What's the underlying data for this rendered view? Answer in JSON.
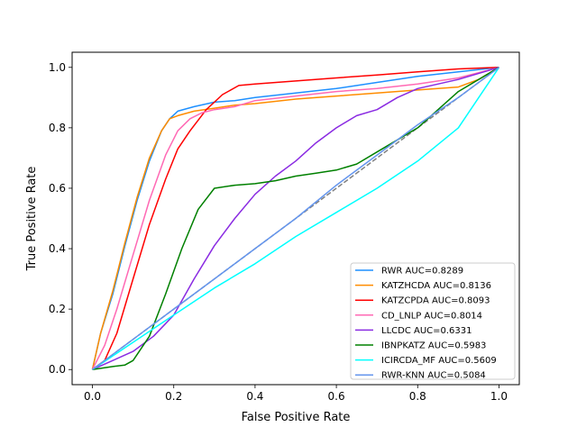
{
  "chart_data": {
    "type": "line",
    "xlabel": "False Positive Rate",
    "ylabel": "True Positive Rate",
    "xlim": [
      -0.05,
      1.05
    ],
    "ylim": [
      -0.05,
      1.05
    ],
    "xticks": [
      0.0,
      0.2,
      0.4,
      0.6,
      0.8,
      1.0
    ],
    "yticks": [
      0.0,
      0.2,
      0.4,
      0.6,
      0.8,
      1.0
    ],
    "xtick_labels": [
      "0.0",
      "0.2",
      "0.4",
      "0.6",
      "0.8",
      "1.0"
    ],
    "ytick_labels": [
      "0.0",
      "0.2",
      "0.4",
      "0.6",
      "0.8",
      "1.0"
    ],
    "grid": false,
    "legend_position": "lower-right",
    "diagonal": {
      "x": [
        0,
        1
      ],
      "y": [
        0,
        1
      ],
      "color": "#808080",
      "style": "dashed"
    },
    "series": [
      {
        "name": "RWR AUC=0.8289",
        "color": "#1e90ff",
        "x": [
          0,
          0.02,
          0.05,
          0.08,
          0.11,
          0.14,
          0.17,
          0.19,
          0.21,
          0.25,
          0.3,
          0.35,
          0.4,
          0.5,
          0.6,
          0.7,
          0.8,
          0.9,
          1.0
        ],
        "y": [
          0,
          0.12,
          0.25,
          0.41,
          0.56,
          0.69,
          0.79,
          0.83,
          0.855,
          0.87,
          0.885,
          0.89,
          0.9,
          0.915,
          0.93,
          0.95,
          0.97,
          0.985,
          1.0
        ]
      },
      {
        "name": "KATZHCDA AUC=0.8136",
        "color": "#ff8c00",
        "x": [
          0,
          0.02,
          0.05,
          0.08,
          0.11,
          0.14,
          0.17,
          0.19,
          0.21,
          0.25,
          0.3,
          0.35,
          0.4,
          0.5,
          0.6,
          0.7,
          0.8,
          0.9,
          0.95,
          1.0
        ],
        "y": [
          0,
          0.12,
          0.26,
          0.42,
          0.57,
          0.7,
          0.79,
          0.83,
          0.84,
          0.855,
          0.865,
          0.875,
          0.88,
          0.895,
          0.905,
          0.915,
          0.925,
          0.935,
          0.96,
          1.0
        ]
      },
      {
        "name": "KATZCPDA AUC=0.8093",
        "color": "#ff0000",
        "x": [
          0,
          0.03,
          0.06,
          0.1,
          0.14,
          0.18,
          0.21,
          0.24,
          0.28,
          0.32,
          0.36,
          0.4,
          0.5,
          0.6,
          0.7,
          0.8,
          0.85,
          0.9,
          1.0
        ],
        "y": [
          0,
          0.03,
          0.12,
          0.3,
          0.48,
          0.63,
          0.73,
          0.79,
          0.86,
          0.91,
          0.94,
          0.945,
          0.955,
          0.965,
          0.975,
          0.985,
          0.99,
          0.995,
          1.0
        ]
      },
      {
        "name": "CD_LNLP AUC=0.8014",
        "color": "#ff69b4",
        "x": [
          0,
          0.03,
          0.06,
          0.1,
          0.14,
          0.18,
          0.21,
          0.24,
          0.27,
          0.3,
          0.35,
          0.4,
          0.5,
          0.6,
          0.7,
          0.8,
          0.9,
          1.0
        ],
        "y": [
          0,
          0.08,
          0.2,
          0.38,
          0.56,
          0.71,
          0.79,
          0.83,
          0.85,
          0.86,
          0.87,
          0.89,
          0.905,
          0.92,
          0.93,
          0.945,
          0.965,
          1.0
        ]
      },
      {
        "name": "LLCDC AUC=0.6331",
        "color": "#8a2be2",
        "x": [
          0,
          0.05,
          0.1,
          0.15,
          0.2,
          0.25,
          0.3,
          0.35,
          0.4,
          0.45,
          0.5,
          0.55,
          0.6,
          0.65,
          0.7,
          0.75,
          0.8,
          0.9,
          1.0
        ],
        "y": [
          0,
          0.03,
          0.06,
          0.11,
          0.18,
          0.3,
          0.41,
          0.5,
          0.58,
          0.64,
          0.69,
          0.75,
          0.8,
          0.84,
          0.86,
          0.9,
          0.93,
          0.96,
          1.0
        ]
      },
      {
        "name": "IBNPKATZ AUC=0.5983",
        "color": "#008000",
        "x": [
          0,
          0.05,
          0.08,
          0.1,
          0.14,
          0.18,
          0.22,
          0.26,
          0.3,
          0.35,
          0.4,
          0.45,
          0.5,
          0.55,
          0.6,
          0.65,
          0.7,
          0.75,
          0.8,
          0.9,
          1.0
        ],
        "y": [
          0,
          0.01,
          0.015,
          0.03,
          0.11,
          0.25,
          0.4,
          0.53,
          0.6,
          0.61,
          0.615,
          0.625,
          0.64,
          0.65,
          0.66,
          0.68,
          0.72,
          0.76,
          0.8,
          0.92,
          1.0
        ]
      },
      {
        "name": "ICIRCDA_MF AUC=0.5609",
        "color": "#00ffff",
        "x": [
          0,
          0.1,
          0.2,
          0.3,
          0.4,
          0.5,
          0.6,
          0.7,
          0.8,
          0.9,
          1.0
        ],
        "y": [
          0,
          0.09,
          0.18,
          0.27,
          0.35,
          0.44,
          0.52,
          0.6,
          0.69,
          0.8,
          1.0
        ]
      },
      {
        "name": "RWR-KNN AUC=0.5084",
        "color": "#6495ed",
        "x": [
          0,
          0.1,
          0.2,
          0.3,
          0.4,
          0.5,
          0.6,
          0.7,
          0.8,
          0.9,
          1.0
        ],
        "y": [
          0,
          0.1,
          0.2,
          0.3,
          0.4,
          0.5,
          0.61,
          0.71,
          0.81,
          0.9,
          1.0
        ]
      }
    ]
  }
}
